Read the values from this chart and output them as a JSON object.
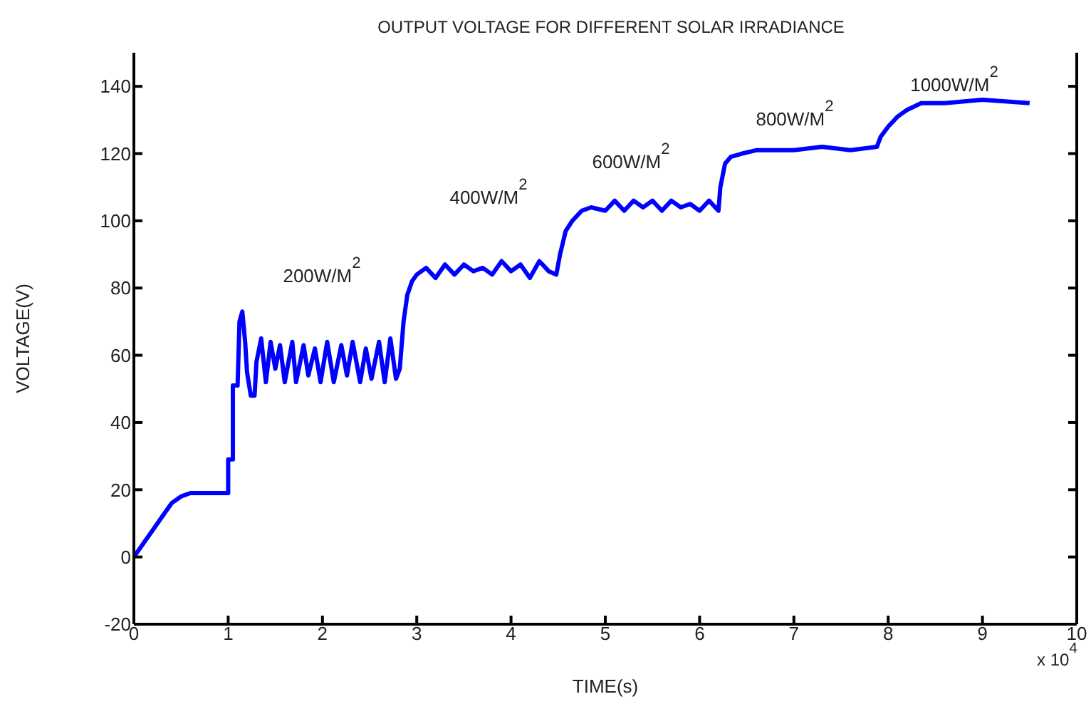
{
  "chart_data": {
    "type": "line",
    "title": "OUTPUT VOLTAGE FOR DIFFERENT SOLAR IRRADIANCE",
    "xlabel": "TIME(s)",
    "ylabel": "VOLTAGE(V)",
    "x": [
      0,
      0.05,
      0.1,
      0.2,
      0.3,
      0.4,
      0.5,
      0.6,
      1.0,
      1.0,
      1.05,
      1.05,
      1.1,
      1.12,
      1.15,
      1.18,
      1.2,
      1.24,
      1.28,
      1.3,
      1.35,
      1.4,
      1.45,
      1.5,
      1.55,
      1.6,
      1.68,
      1.72,
      1.8,
      1.85,
      1.92,
      1.98,
      2.05,
      2.12,
      2.2,
      2.26,
      2.32,
      2.4,
      2.46,
      2.52,
      2.6,
      2.66,
      2.72,
      2.78,
      2.82,
      2.86,
      2.9,
      2.95,
      3.0,
      3.1,
      3.2,
      3.3,
      3.4,
      3.5,
      3.6,
      3.7,
      3.8,
      3.9,
      4.0,
      4.1,
      4.2,
      4.3,
      4.4,
      4.48,
      4.52,
      4.58,
      4.65,
      4.75,
      4.85,
      5.0,
      5.1,
      5.2,
      5.3,
      5.4,
      5.5,
      5.6,
      5.7,
      5.8,
      5.9,
      6.0,
      6.1,
      6.2,
      6.22,
      6.27,
      6.33,
      6.45,
      6.6,
      6.8,
      7.0,
      7.3,
      7.6,
      7.88,
      7.92,
      8.0,
      8.1,
      8.2,
      8.35,
      8.6,
      9.0,
      9.5
    ],
    "series": [
      {
        "color": "#0000ff",
        "values": [
          0,
          2,
          4,
          8,
          12,
          16,
          18,
          19,
          19,
          29,
          29,
          51,
          51,
          70,
          73,
          64,
          55,
          48,
          48,
          58,
          65,
          52,
          64,
          56,
          63,
          52,
          64,
          52,
          63,
          54,
          62,
          52,
          64,
          52,
          63,
          54,
          64,
          52,
          62,
          53,
          64,
          52,
          65,
          53,
          56,
          70,
          78,
          82,
          84,
          86,
          83,
          87,
          84,
          87,
          85,
          86,
          84,
          88,
          85,
          87,
          83,
          88,
          85,
          84,
          90,
          97,
          100,
          103,
          104,
          103,
          106,
          103,
          106,
          104,
          106,
          103,
          106,
          104,
          105,
          103,
          106,
          103,
          110,
          117,
          119,
          120,
          121,
          121,
          121,
          122,
          121,
          122,
          125,
          128,
          131,
          133,
          135,
          135,
          136,
          135
        ]
      }
    ],
    "xlim": [
      0,
      10
    ],
    "xticks": [
      0,
      1,
      2,
      3,
      4,
      5,
      6,
      7,
      8,
      9,
      10
    ],
    "ylim": [
      -20,
      150
    ],
    "yticks": [
      -20,
      0,
      20,
      40,
      60,
      80,
      100,
      120,
      140
    ],
    "marker": "none",
    "line_style": "solid",
    "annotations": [
      "200W/M$^{2}$",
      "400W/M$^{2}$",
      "600W/M$^{2}$",
      "800W/M$^{2}$",
      "1000W/M$^{2}$",
      "x 10$^{4}$"
    ]
  }
}
